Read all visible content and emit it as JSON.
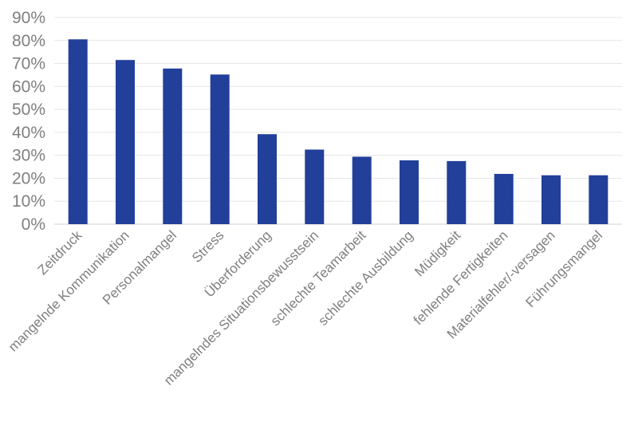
{
  "chart_data": {
    "type": "bar",
    "title": "",
    "xlabel": "",
    "ylabel": "",
    "ylim": [
      0,
      90
    ],
    "yticks": [
      "0%",
      "10%",
      "20%",
      "30%",
      "40%",
      "50%",
      "60%",
      "70%",
      "80%",
      "90%"
    ],
    "grid": true,
    "bar_color": "#22409a",
    "categories": [
      "Zeitdruck",
      "mangelnde Kommunikation",
      "Personalmangel",
      "Stress",
      "Überforderung",
      "mangelndes Situationsbewusstsein",
      "schlechte Teamarbeit",
      "schlechte Ausbildung",
      "Müdigkeit",
      "fehlende Fertigkeiten",
      "Materialfehler/-versagen",
      "Führungsmangel"
    ],
    "values": [
      80.5,
      71.5,
      67.8,
      65.2,
      39.2,
      32.5,
      29.4,
      27.8,
      27.5,
      21.9,
      21.3,
      21.3
    ],
    "unit": "%"
  }
}
